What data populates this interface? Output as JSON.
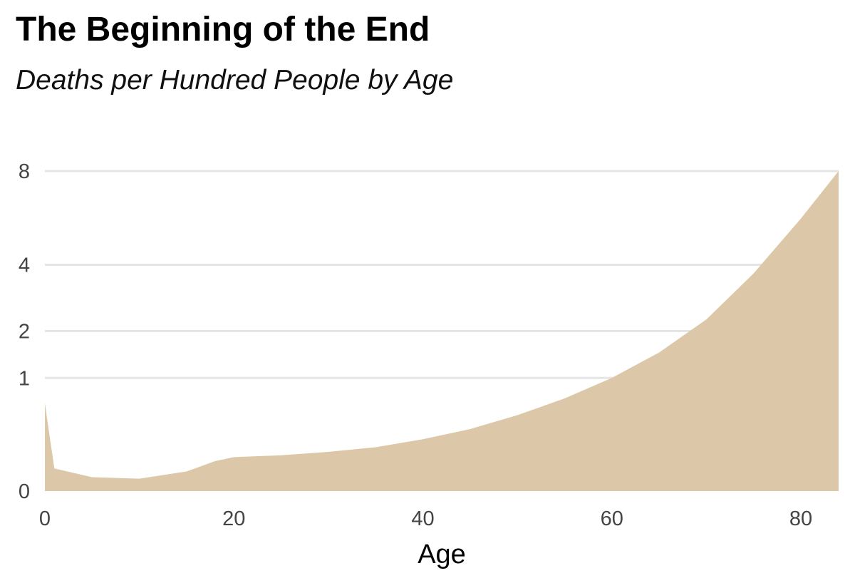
{
  "chart_data": {
    "type": "area",
    "title": "The Beginning of the End",
    "subtitle": "Deaths per Hundred People by Age",
    "xlabel": "Age",
    "ylabel": "",
    "y_scale": "sqrt",
    "xlim": [
      0,
      84
    ],
    "ylim": [
      0,
      8
    ],
    "x_ticks": [
      0,
      20,
      40,
      60,
      80
    ],
    "y_ticks": [
      0,
      1,
      2,
      4,
      8
    ],
    "grid": true,
    "fill_color": "#dcc8a8",
    "gridline_color": "#e5e5e5",
    "series": [
      {
        "x": [
          0,
          1,
          5,
          10,
          15,
          18,
          20,
          25,
          30,
          35,
          40,
          45,
          50,
          55,
          60,
          65,
          70,
          75,
          80,
          84
        ],
        "values": [
          0.6,
          0.04,
          0.015,
          0.012,
          0.03,
          0.07,
          0.09,
          0.1,
          0.12,
          0.15,
          0.21,
          0.3,
          0.45,
          0.67,
          1.0,
          1.5,
          2.3,
          3.7,
          5.8,
          8.0
        ]
      }
    ]
  }
}
